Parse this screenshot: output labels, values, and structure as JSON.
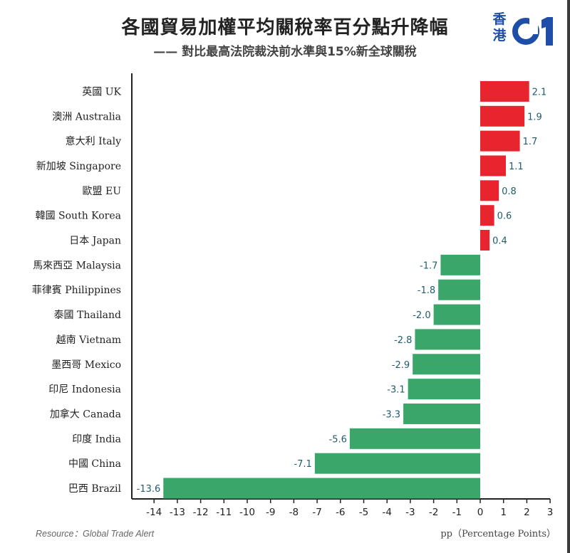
{
  "header": {
    "title": "各國貿易加權平均關稅率百分點升降幅",
    "subtitle": "—— 對比最高法院裁決前水準與15%新全球關稅",
    "logo_chars": [
      "香",
      "港"
    ],
    "logo_mark": "01"
  },
  "footer": {
    "source": "Resource：Global Trade Alert",
    "unit": "pp（Percentage Points）"
  },
  "colors": {
    "positive": "#e8242f",
    "negative": "#3aa66a",
    "brand": "#1f4ea8",
    "label_value": "#1f5d6e"
  },
  "chart_data": {
    "type": "bar",
    "orientation": "horizontal",
    "title": "各國貿易加權平均關稅率百分點升降幅",
    "subtitle": "—— 對比最高法院裁決前水準與15%新全球關稅",
    "xlabel": "pp（Percentage Points）",
    "ylabel": "",
    "xlim": [
      -14.5,
      3.3
    ],
    "xticks": [
      -14,
      -13,
      -12,
      -11,
      -10,
      -9,
      -8,
      -7,
      -6,
      -5,
      -4,
      -3,
      -2,
      -1,
      0,
      1,
      2,
      3
    ],
    "grid": false,
    "categories": [
      "英國 UK",
      "澳洲 Australia",
      "意大利 Italy",
      "新加坡 Singapore",
      "歐盟 EU",
      "韓國 South Korea",
      "日本 Japan",
      "馬來西亞 Malaysia",
      "菲律賓 Philippines",
      "泰國 Thailand",
      "越南 Vietnam",
      "墨西哥 Mexico",
      "印尼 Indonesia",
      "加拿大 Canada",
      "印度 India",
      "中國 China",
      "巴西 Brazil"
    ],
    "values": [
      2.1,
      1.9,
      1.7,
      1.1,
      0.8,
      0.6,
      0.4,
      -1.7,
      -1.8,
      -2.0,
      -2.8,
      -2.9,
      -3.1,
      -3.3,
      -5.6,
      -7.1,
      -13.6
    ],
    "value_labels": [
      "2.1",
      "1.9",
      "1.7",
      "1.1",
      "0.8",
      "0.6",
      "0.4",
      "-1.7",
      "-1.8",
      "-2.0",
      "-2.8",
      "-2.9",
      "-3.1",
      "-3.3",
      "-5.6",
      "-7.1",
      "-13.6"
    ]
  }
}
